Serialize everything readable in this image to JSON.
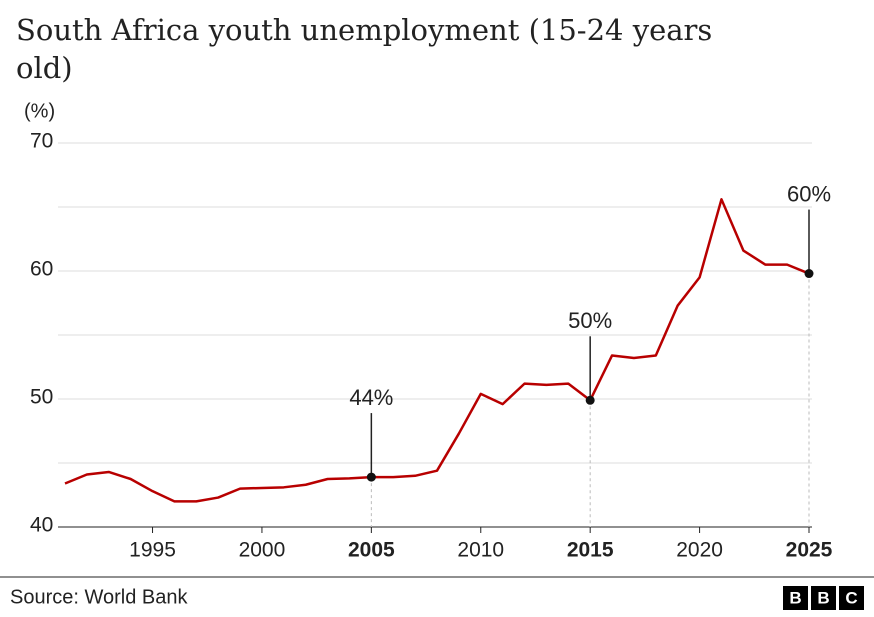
{
  "chart_data": {
    "type": "line",
    "title": "South Africa youth unemployment (15-24 years old)",
    "y_label": "(%)",
    "x": [
      1991,
      1992,
      1993,
      1994,
      1995,
      1996,
      1997,
      1998,
      1999,
      2000,
      2001,
      2002,
      2003,
      2004,
      2005,
      2006,
      2007,
      2008,
      2009,
      2010,
      2011,
      2012,
      2013,
      2014,
      2015,
      2016,
      2017,
      2018,
      2019,
      2020,
      2021,
      2022,
      2023,
      2024,
      2025
    ],
    "values": [
      43.4,
      44.1,
      44.3,
      43.75,
      42.8,
      42.0,
      42.0,
      42.3,
      43.0,
      43.05,
      43.1,
      43.3,
      43.75,
      43.8,
      43.9,
      43.9,
      44.0,
      44.4,
      47.3,
      50.4,
      49.6,
      51.2,
      51.1,
      51.2,
      49.9,
      53.4,
      53.2,
      53.4,
      57.3,
      59.5,
      65.6,
      61.6,
      60.5,
      60.5,
      59.8
    ],
    "value_labels": [
      null,
      null,
      null,
      null,
      null,
      null,
      null,
      null,
      null,
      null,
      null,
      null,
      null,
      null,
      "44%",
      null,
      null,
      null,
      null,
      null,
      null,
      null,
      null,
      null,
      "50%",
      null,
      null,
      null,
      null,
      null,
      null,
      null,
      null,
      null,
      "60%"
    ],
    "color": "#b80000",
    "xlim": [
      1991,
      2025
    ],
    "xticks": [
      1995,
      2000,
      2005,
      2010,
      2015,
      2020,
      2025
    ],
    "ylim": [
      40,
      70
    ],
    "yticks": [
      40,
      50,
      60,
      70
    ],
    "minor_yticks": [
      45,
      55,
      65
    ],
    "grid": true,
    "source": "Source: World Bank",
    "logo": [
      "B",
      "B",
      "C"
    ]
  }
}
